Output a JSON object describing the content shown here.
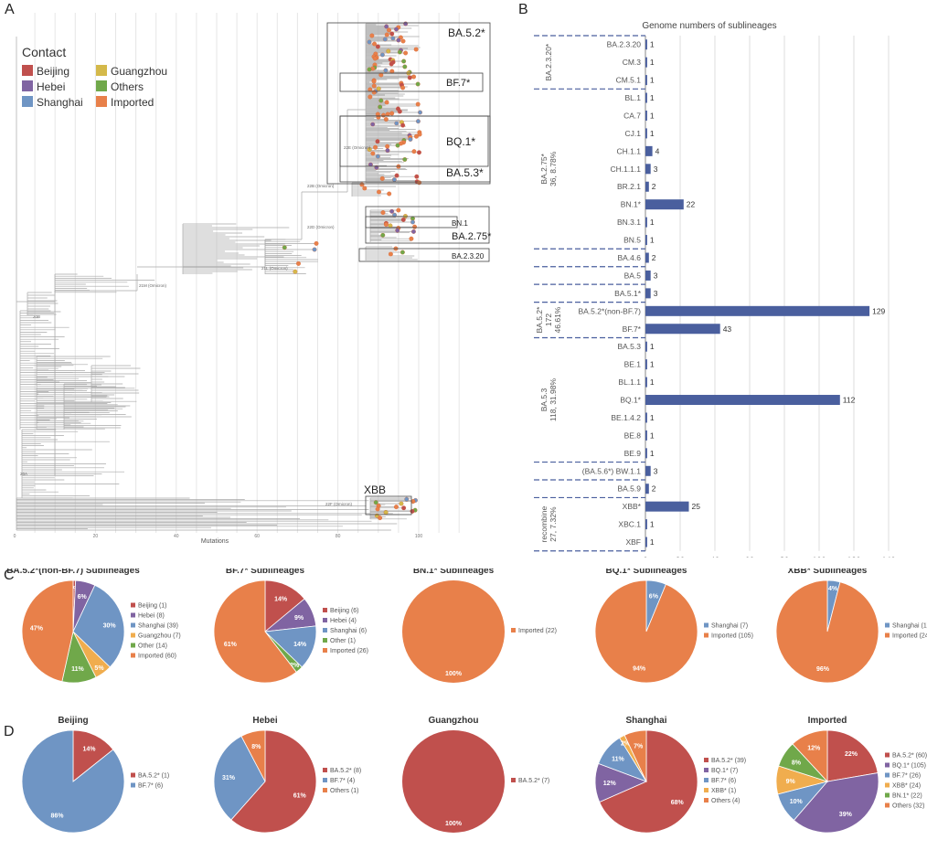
{
  "panels": {
    "a": "A",
    "b": "B",
    "c": "C",
    "d": "D"
  },
  "tree": {
    "legend_title": "Contact",
    "legend": [
      {
        "label": "Beijing",
        "color": "#c0504d"
      },
      {
        "label": "Guangzhou",
        "color": "#d4b94a"
      },
      {
        "label": "Hebei",
        "color": "#8064a2"
      },
      {
        "label": "Others",
        "color": "#70a84a"
      },
      {
        "label": "Shanghai",
        "color": "#6f95c4"
      },
      {
        "label": "Imported",
        "color": "#e8804a"
      }
    ],
    "clade_boxes": [
      "BA.5.2*",
      "BF.7*",
      "BQ.1*",
      "BA.5.3*",
      "BN.1",
      "BA.2.75*",
      "BA.2.3.20",
      "XBB"
    ],
    "x_axis_label": "Mutations",
    "x_ticks": [
      "0",
      "20",
      "40",
      "60",
      "80",
      "100"
    ],
    "node_labels": [
      "22B (Omicron)",
      "22E (Omicron)",
      "22D (Omicron)",
      "21L (Omicron)",
      "21M (Omicron)",
      "20B",
      "20A",
      "22F (Omicron)"
    ]
  },
  "chart_data": [
    {
      "type": "bar",
      "orientation": "horizontal",
      "title": "Genome numbers of sublineages",
      "categories": [
        "BA.2.3.20",
        "CM.3",
        "CM.5.1",
        "BL.1",
        "CA.7",
        "CJ.1",
        "CH.1.1",
        "CH.1.1.1",
        "BR.2.1",
        "BN.1*",
        "BN.3.1",
        "BN.5",
        "BA.4.6",
        "BA.5",
        "BA.5.1*",
        "BA.5.2*(non-BF.7)",
        "BF.7*",
        "BA.5.3",
        "BE.1",
        "BL.1.1",
        "BQ.1*",
        "BE.1.4.2",
        "BE.8",
        "BE.9",
        "(BA.5.6*) BW.1.1",
        "BA.5.9",
        "XBB*",
        "XBC.1",
        "XBF"
      ],
      "values": [
        1,
        1,
        1,
        1,
        1,
        1,
        4,
        3,
        2,
        22,
        1,
        1,
        2,
        3,
        3,
        129,
        43,
        1,
        1,
        1,
        112,
        1,
        1,
        1,
        3,
        2,
        25,
        1,
        1
      ],
      "xlim": [
        0,
        140
      ],
      "x_ticks": [
        "0",
        "20",
        "40",
        "60",
        "80",
        "100",
        "120",
        "140"
      ],
      "bar_color": "#4a5f9e",
      "grid": true,
      "groups": [
        {
          "label": [
            "BA.2.3.20*"
          ],
          "start": 0,
          "end": 2
        },
        {
          "label": [
            "BA.2.75*",
            "36, 8.78%"
          ],
          "start": 3,
          "end": 11
        },
        {
          "label": [
            "BA.5.2*",
            "172",
            "46.61%"
          ],
          "start": 15,
          "end": 16
        },
        {
          "label": [
            "BA.5.3",
            "118, 31.98%"
          ],
          "start": 17,
          "end": 23
        },
        {
          "label": [
            "recombine",
            "27, 7.32%"
          ],
          "start": 26,
          "end": 28
        }
      ],
      "dashed_separators_after": [
        2,
        11,
        12,
        13,
        14,
        16,
        23,
        24,
        25
      ]
    },
    {
      "type": "pie",
      "title": "BA.5.2*(non-BF.7) Sublineages",
      "slices": [
        {
          "label": "Beijing (1)",
          "value": 1,
          "pct": "1%",
          "color": "#c0504d"
        },
        {
          "label": "Hebei (8)",
          "value": 8,
          "pct": "6%",
          "color": "#8064a2"
        },
        {
          "label": "Shanghai (39)",
          "value": 39,
          "pct": "30%",
          "color": "#6f95c4"
        },
        {
          "label": "Guangzhou (7)",
          "value": 7,
          "pct": "5%",
          "color": "#f0ad4e"
        },
        {
          "label": "Other (14)",
          "value": 14,
          "pct": "11%",
          "color": "#70a84a"
        },
        {
          "label": "Imported (60)",
          "value": 60,
          "pct": "47%",
          "color": "#e8804a"
        }
      ]
    },
    {
      "type": "pie",
      "title": "BF.7* Sublineages",
      "slices": [
        {
          "label": "Beijing (6)",
          "value": 6,
          "pct": "14%",
          "color": "#c0504d"
        },
        {
          "label": "Hebei (4)",
          "value": 4,
          "pct": "9%",
          "color": "#8064a2"
        },
        {
          "label": "Shanghai (6)",
          "value": 6,
          "pct": "14%",
          "color": "#6f95c4"
        },
        {
          "label": "Other (1)",
          "value": 1,
          "pct": "2%",
          "color": "#70a84a"
        },
        {
          "label": "Imported (26)",
          "value": 26,
          "pct": "61%",
          "color": "#e8804a"
        }
      ]
    },
    {
      "type": "pie",
      "title": "BN.1* Sublineages",
      "slices": [
        {
          "label": "Imported (22)",
          "value": 22,
          "pct": "100%",
          "color": "#e8804a"
        }
      ]
    },
    {
      "type": "pie",
      "title": "BQ.1* Sublineages",
      "slices": [
        {
          "label": "Shanghai (7)",
          "value": 7,
          "pct": "6%",
          "color": "#6f95c4"
        },
        {
          "label": "Imported (105)",
          "value": 105,
          "pct": "94%",
          "color": "#e8804a"
        }
      ]
    },
    {
      "type": "pie",
      "title": "XBB* Sublineages",
      "slices": [
        {
          "label": "Shanghai (1)",
          "value": 1,
          "pct": "4%",
          "color": "#6f95c4"
        },
        {
          "label": "Imported (24)",
          "value": 24,
          "pct": "96%",
          "color": "#e8804a"
        }
      ]
    },
    {
      "type": "pie",
      "title": "Beijing",
      "slices": [
        {
          "label": "BA.5.2* (1)",
          "value": 1,
          "pct": "14%",
          "color": "#c0504d"
        },
        {
          "label": "BF.7* (6)",
          "value": 6,
          "pct": "86%",
          "color": "#6f95c4"
        }
      ]
    },
    {
      "type": "pie",
      "title": "Hebei",
      "slices": [
        {
          "label": "BA.5.2* (8)",
          "value": 8,
          "pct": "61%",
          "color": "#c0504d"
        },
        {
          "label": "BF.7* (4)",
          "value": 4,
          "pct": "31%",
          "color": "#6f95c4"
        },
        {
          "label": "Others (1)",
          "value": 1,
          "pct": "8%",
          "color": "#e8804a"
        }
      ]
    },
    {
      "type": "pie",
      "title": "Guangzhou",
      "slices": [
        {
          "label": "BA.5.2* (7)",
          "value": 7,
          "pct": "100%",
          "color": "#c0504d"
        }
      ]
    },
    {
      "type": "pie",
      "title": "Shanghai",
      "slices": [
        {
          "label": "BA.5.2* (39)",
          "value": 39,
          "pct": "68%",
          "color": "#c0504d"
        },
        {
          "label": "BQ.1* (7)",
          "value": 7,
          "pct": "12%",
          "color": "#8064a2"
        },
        {
          "label": "BF.7* (6)",
          "value": 6,
          "pct": "11%",
          "color": "#6f95c4"
        },
        {
          "label": "XBB* (1)",
          "value": 1,
          "pct": "2%",
          "color": "#f0ad4e"
        },
        {
          "label": "Others (4)",
          "value": 4,
          "pct": "7%",
          "color": "#e8804a"
        }
      ]
    },
    {
      "type": "pie",
      "title": "Imported",
      "slices": [
        {
          "label": "BA.5.2* (60)",
          "value": 60,
          "pct": "22%",
          "color": "#c0504d"
        },
        {
          "label": "BQ.1* (105)",
          "value": 105,
          "pct": "39%",
          "color": "#8064a2"
        },
        {
          "label": "BF.7* (26)",
          "value": 26,
          "pct": "10%",
          "color": "#6f95c4"
        },
        {
          "label": "XBB* (24)",
          "value": 24,
          "pct": "9%",
          "color": "#f0ad4e"
        },
        {
          "label": "BN.1* (22)",
          "value": 22,
          "pct": "8%",
          "color": "#70a84a"
        },
        {
          "label": "Others (32)",
          "value": 32,
          "pct": "12%",
          "color": "#e8804a"
        }
      ]
    }
  ]
}
